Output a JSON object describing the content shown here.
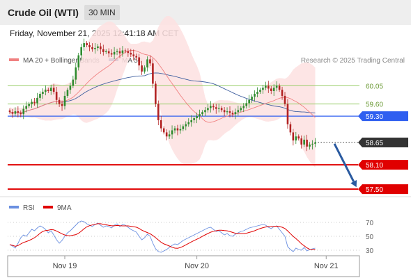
{
  "header": {
    "title": "Crude Oil (WTI)",
    "timeframe": "30 MIN"
  },
  "timestamp": "Friday, November 21, 2025 12:41:18 AM CET",
  "legend": {
    "ma20": "MA 20 + Bollinger Bands",
    "ma50": "MA 50",
    "credit": "Research © 2025 Trading Central",
    "rsi": "RSI",
    "ma9": "9MA"
  },
  "colors": {
    "ma20": "#f08080",
    "ma50": "#3f5f9f",
    "band": "#fde0e0",
    "bull": "#2e8b2e",
    "bear": "#b22222",
    "green_level": "#9acd6a",
    "blue_level": "#2f5ff0",
    "red_level": "#e00000",
    "current": "#333333",
    "arrow": "#2a5aa0",
    "rsi": "#6a8fe0",
    "rsi_ma": "#e00000"
  },
  "chart_data": {
    "type": "candlestick",
    "instrument": "Crude Oil (WTI)",
    "interval": "30 MIN",
    "ylim": [
      57.4,
      60.45
    ],
    "x_ticks": [
      {
        "label": "Nov 19",
        "index": 20
      },
      {
        "label": "Nov 20",
        "index": 68
      },
      {
        "label": "Nov 21",
        "index": 115
      }
    ],
    "levels": [
      {
        "value": 60.05,
        "label": "60.05",
        "style": "green"
      },
      {
        "value": 59.6,
        "label": "59.60",
        "style": "green"
      },
      {
        "value": 59.3,
        "label": "59.30",
        "style": "blue"
      },
      {
        "value": 58.65,
        "label": "58.65",
        "style": "current"
      },
      {
        "value": 58.1,
        "label": "58.10",
        "style": "red"
      },
      {
        "value": 57.5,
        "label": "57.50",
        "style": "red"
      }
    ],
    "arrow": {
      "from_index": 118,
      "from_value": 58.62,
      "to_index": 126,
      "to_value": 57.55
    },
    "closes": [
      59.4,
      59.36,
      59.42,
      59.38,
      59.35,
      59.48,
      59.55,
      59.6,
      59.65,
      59.62,
      59.75,
      59.85,
      59.9,
      59.95,
      59.92,
      60.0,
      59.9,
      59.7,
      59.6,
      59.55,
      59.8,
      59.95,
      60.05,
      60.2,
      60.5,
      60.8,
      61.0,
      61.1,
      61.05,
      61.0,
      60.95,
      60.98,
      61.02,
      60.95,
      60.88,
      60.9,
      60.85,
      60.82,
      60.88,
      60.9,
      60.85,
      60.92,
      60.9,
      60.86,
      60.82,
      60.78,
      60.75,
      60.55,
      60.4,
      60.5,
      60.7,
      60.6,
      60.1,
      59.6,
      59.2,
      59.0,
      58.9,
      58.8,
      58.85,
      58.95,
      59.0,
      58.95,
      58.98,
      59.05,
      59.1,
      59.15,
      59.2,
      59.25,
      59.3,
      59.35,
      59.4,
      59.45,
      59.5,
      59.55,
      59.52,
      59.48,
      59.5,
      59.45,
      59.4,
      59.42,
      59.38,
      59.35,
      59.4,
      59.45,
      59.5,
      59.55,
      59.62,
      59.7,
      59.78,
      59.85,
      59.9,
      59.95,
      60.0,
      60.05,
      59.98,
      59.92,
      60.0,
      60.05,
      59.95,
      59.8,
      59.6,
      59.1,
      58.9,
      58.7,
      58.8,
      58.75,
      58.6,
      58.72,
      58.55,
      58.6,
      58.62,
      58.65
    ],
    "rsi": {
      "ylim": [
        22,
        78
      ],
      "ticks": [
        70,
        50,
        30
      ],
      "values": [
        38,
        36,
        33,
        40,
        48,
        52,
        50,
        55,
        60,
        58,
        62,
        65,
        63,
        60,
        55,
        58,
        52,
        45,
        40,
        44,
        50,
        55,
        58,
        62,
        66,
        70,
        72,
        71,
        68,
        66,
        64,
        67,
        69,
        66,
        63,
        65,
        64,
        62,
        66,
        68,
        64,
        67,
        66,
        63,
        60,
        58,
        56,
        50,
        45,
        48,
        53,
        50,
        40,
        32,
        28,
        27,
        29,
        31,
        34,
        37,
        39,
        38,
        41,
        44,
        46,
        48,
        50,
        52,
        54,
        56,
        58,
        60,
        62,
        63,
        60,
        57,
        58,
        55,
        52,
        54,
        51,
        50,
        53,
        55,
        57,
        58,
        60,
        62,
        63,
        64,
        65,
        66,
        67,
        66,
        63,
        61,
        64,
        65,
        60,
        55,
        50,
        35,
        31,
        28,
        33,
        31,
        30,
        34,
        29,
        31,
        32,
        33
      ]
    }
  }
}
